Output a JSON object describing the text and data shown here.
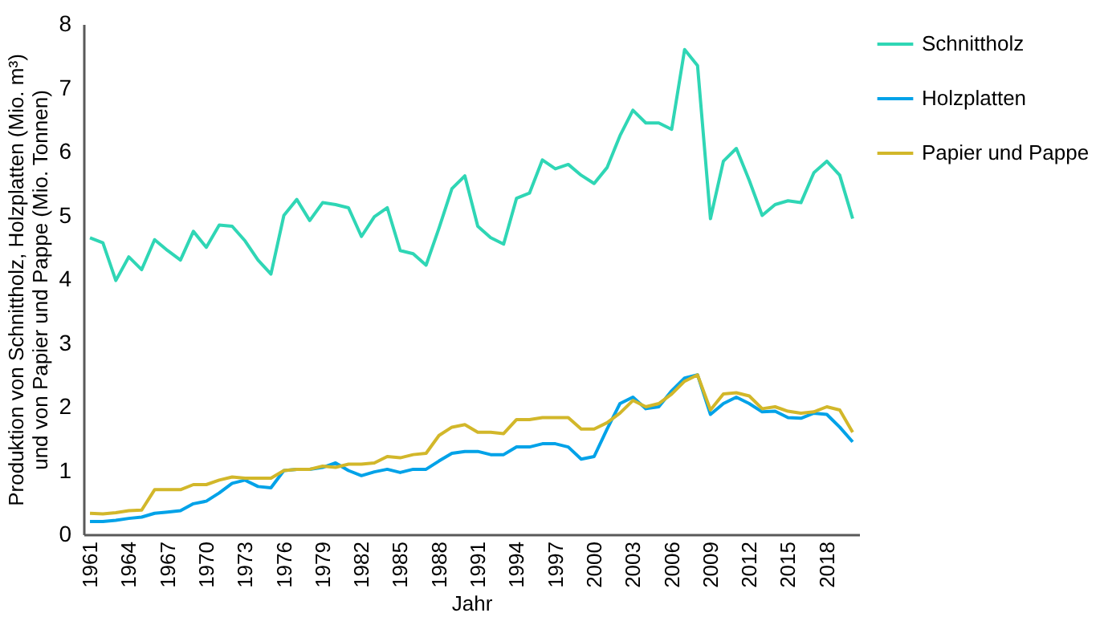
{
  "chart_data": {
    "type": "line",
    "xlabel": "Jahr",
    "ylabel": "Produktion von Schnittholz, Holzplatten (Mio. m³)\nund von Papier und Pappe (Mio. Tonnen)",
    "categories": [
      "1961",
      null,
      null,
      "1964",
      null,
      null,
      "1967",
      null,
      null,
      "1970",
      null,
      null,
      "1973",
      null,
      null,
      "1976",
      null,
      null,
      "1979",
      null,
      null,
      "1982",
      null,
      null,
      "1985",
      null,
      null,
      "1988",
      null,
      null,
      "1991",
      null,
      null,
      "1994",
      null,
      null,
      "1997",
      null,
      null,
      "2000",
      null,
      null,
      "2003",
      null,
      null,
      "2006",
      null,
      null,
      "2009",
      null,
      null,
      "2012",
      null,
      null,
      "2015",
      null,
      null,
      "2018",
      null,
      null
    ],
    "ylim": [
      0,
      8
    ],
    "yticks": [
      0,
      1,
      2,
      3,
      4,
      5,
      6,
      7,
      8
    ],
    "grid": false,
    "legend": "right",
    "marker": "none",
    "line_style": "solid",
    "series": [
      {
        "name": "Schnittholz",
        "color": "#2fd6b5",
        "values": [
          4.65,
          4.57,
          3.98,
          4.35,
          4.15,
          4.62,
          4.45,
          4.3,
          4.75,
          4.5,
          4.85,
          4.83,
          4.6,
          4.3,
          4.08,
          5.0,
          5.25,
          4.92,
          5.2,
          5.17,
          5.12,
          4.67,
          4.98,
          5.12,
          4.45,
          4.4,
          4.22,
          4.8,
          5.42,
          5.62,
          4.83,
          4.65,
          4.55,
          5.27,
          5.35,
          5.87,
          5.73,
          5.8,
          5.63,
          5.5,
          5.75,
          6.25,
          6.65,
          6.45,
          6.45,
          6.35,
          7.6,
          7.35,
          4.95,
          5.85,
          6.05,
          5.55,
          5.0,
          5.17,
          5.23,
          5.2,
          5.67,
          5.85,
          5.63,
          4.95
        ]
      },
      {
        "name": "Holzplatten",
        "color": "#00a2e8",
        "values": [
          0.2,
          0.2,
          0.22,
          0.25,
          0.27,
          0.33,
          0.35,
          0.37,
          0.48,
          0.52,
          0.65,
          0.8,
          0.85,
          0.75,
          0.73,
          1.0,
          1.02,
          1.02,
          1.05,
          1.12,
          1.0,
          0.92,
          0.98,
          1.02,
          0.97,
          1.02,
          1.02,
          1.15,
          1.27,
          1.3,
          1.3,
          1.25,
          1.25,
          1.37,
          1.37,
          1.42,
          1.42,
          1.37,
          1.18,
          1.22,
          1.65,
          2.05,
          2.15,
          1.97,
          2.0,
          2.25,
          2.45,
          2.5,
          1.88,
          2.05,
          2.15,
          2.05,
          1.92,
          1.93,
          1.83,
          1.82,
          1.9,
          1.88,
          1.68,
          1.45
        ]
      },
      {
        "name": "Papier und Pappe",
        "color": "#d2b72a",
        "values": [
          0.33,
          0.32,
          0.34,
          0.37,
          0.38,
          0.7,
          0.7,
          0.7,
          0.78,
          0.78,
          0.85,
          0.9,
          0.88,
          0.88,
          0.88,
          1.0,
          1.02,
          1.02,
          1.07,
          1.05,
          1.1,
          1.1,
          1.12,
          1.22,
          1.2,
          1.25,
          1.27,
          1.55,
          1.68,
          1.72,
          1.6,
          1.6,
          1.58,
          1.8,
          1.8,
          1.83,
          1.83,
          1.83,
          1.65,
          1.65,
          1.75,
          1.9,
          2.1,
          2.0,
          2.05,
          2.2,
          2.4,
          2.5,
          1.95,
          2.2,
          2.22,
          2.17,
          1.97,
          2.0,
          1.93,
          1.9,
          1.92,
          2.0,
          1.95,
          1.6
        ]
      }
    ]
  }
}
